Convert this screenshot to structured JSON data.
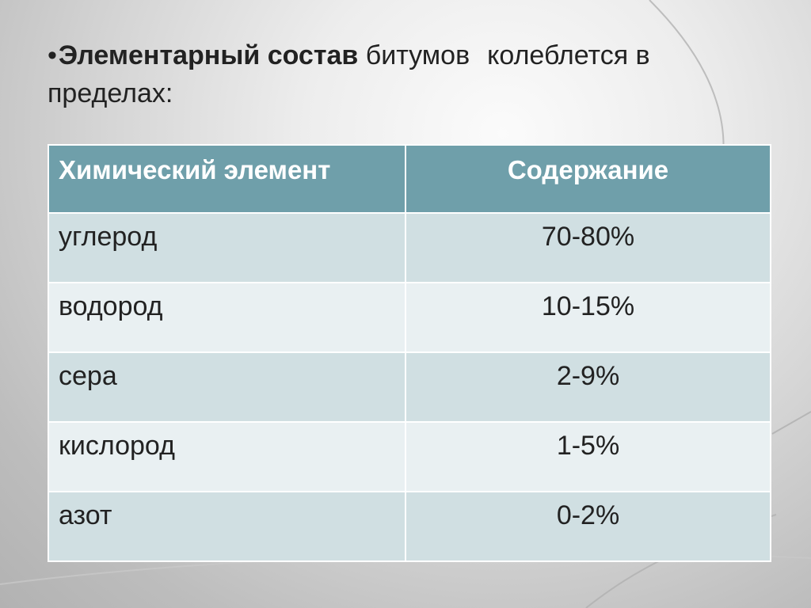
{
  "slide": {
    "bullet": "•",
    "title_bold": "Элементарный состав",
    "title_rest_1": "битумов",
    "title_rest_2": "колеблется в пределах:"
  },
  "table": {
    "headers": {
      "element": "Химический элемент",
      "content": "Содержание"
    },
    "rows": [
      {
        "element": "углерод",
        "content": "70-80%"
      },
      {
        "element": "водород",
        "content": "10-15%"
      },
      {
        "element": "сера",
        "content": "2-9%"
      },
      {
        "element": "кислород",
        "content": "1-5%"
      },
      {
        "element": "азот",
        "content": "0-2%"
      }
    ]
  },
  "colors": {
    "header_bg": "#6f9faa",
    "row_odd_bg": "#d0dfe2",
    "row_even_bg": "#e9f0f2",
    "text": "#222222"
  }
}
